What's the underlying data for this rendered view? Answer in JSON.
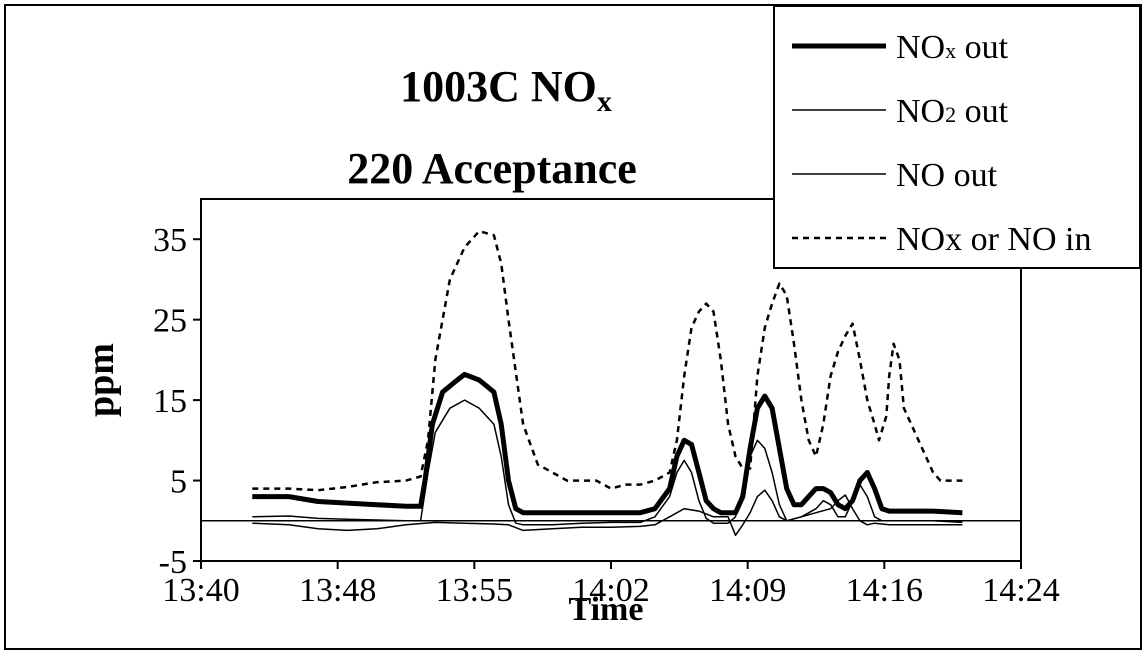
{
  "chart_data": {
    "type": "line",
    "title_main": "1003C NO",
    "title_sub": "x",
    "subtitle": "220 Acceptance",
    "xlabel": "Time",
    "ylabel": "ppm",
    "x_ticks": [
      "13:40",
      "13:48",
      "13:55",
      "14:02",
      "14:09",
      "14:16",
      "14:24"
    ],
    "y_ticks": [
      "35",
      "25",
      "15",
      "5",
      "-5"
    ],
    "ylim": [
      -5,
      40
    ],
    "legend_position": "top-right",
    "x_unit": "minutes after 13:40",
    "series": [
      {
        "name": "NOx or NO in",
        "style": "dashed",
        "color": "#000000",
        "points": [
          [
            3.5,
            4.0
          ],
          [
            6,
            4.0
          ],
          [
            8,
            3.8
          ],
          [
            10,
            4.2
          ],
          [
            12,
            4.8
          ],
          [
            14,
            5.0
          ],
          [
            15,
            5.5
          ],
          [
            15.5,
            10
          ],
          [
            16,
            20
          ],
          [
            17,
            30
          ],
          [
            18,
            34
          ],
          [
            19,
            36
          ],
          [
            20,
            35.5
          ],
          [
            20.5,
            32
          ],
          [
            21,
            25
          ],
          [
            22,
            12
          ],
          [
            23,
            7
          ],
          [
            24,
            6
          ],
          [
            25,
            5
          ],
          [
            27,
            5
          ],
          [
            28,
            4
          ],
          [
            29,
            4.5
          ],
          [
            30,
            4.5
          ],
          [
            31,
            5
          ],
          [
            32,
            6
          ],
          [
            32.5,
            10
          ],
          [
            33,
            18
          ],
          [
            33.5,
            24
          ],
          [
            34,
            26
          ],
          [
            34.5,
            27
          ],
          [
            35,
            26
          ],
          [
            35.5,
            20
          ],
          [
            36,
            12
          ],
          [
            36.5,
            8
          ],
          [
            37,
            6.5
          ],
          [
            37.5,
            6.5
          ],
          [
            38,
            18
          ],
          [
            38.5,
            24
          ],
          [
            39,
            27
          ],
          [
            39.5,
            29.5
          ],
          [
            40,
            28
          ],
          [
            40.5,
            22
          ],
          [
            41,
            15
          ],
          [
            41.5,
            10
          ],
          [
            42,
            8
          ],
          [
            42.5,
            12
          ],
          [
            43,
            18
          ],
          [
            43.5,
            21
          ],
          [
            44,
            23
          ],
          [
            44.5,
            24.5
          ],
          [
            45,
            20
          ],
          [
            45.5,
            15
          ],
          [
            46,
            12
          ],
          [
            46.3,
            10
          ],
          [
            46.8,
            13
          ],
          [
            47,
            18
          ],
          [
            47.3,
            22
          ],
          [
            47.7,
            20
          ],
          [
            48,
            14
          ],
          [
            48.5,
            12
          ],
          [
            49,
            10
          ],
          [
            49.5,
            8
          ],
          [
            50,
            6
          ],
          [
            50.5,
            5
          ],
          [
            51,
            5
          ],
          [
            52,
            5
          ]
        ]
      },
      {
        "name": "NOx out",
        "style": "thick",
        "color": "#000000",
        "points": [
          [
            3.5,
            3.0
          ],
          [
            6,
            3.0
          ],
          [
            8,
            2.4
          ],
          [
            10,
            2.2
          ],
          [
            12,
            2.0
          ],
          [
            14,
            1.8
          ],
          [
            15,
            1.8
          ],
          [
            15.3,
            5
          ],
          [
            15.8,
            12
          ],
          [
            16.5,
            16
          ],
          [
            17.5,
            17.5
          ],
          [
            18,
            18.2
          ],
          [
            19,
            17.5
          ],
          [
            20,
            16
          ],
          [
            20.5,
            12
          ],
          [
            21,
            5
          ],
          [
            21.5,
            1.5
          ],
          [
            22,
            1.0
          ],
          [
            24,
            1.0
          ],
          [
            26,
            1.0
          ],
          [
            28,
            1.0
          ],
          [
            30,
            1.0
          ],
          [
            31,
            1.5
          ],
          [
            32,
            4
          ],
          [
            32.5,
            8
          ],
          [
            33,
            10
          ],
          [
            33.5,
            9.5
          ],
          [
            34,
            6
          ],
          [
            34.5,
            2.5
          ],
          [
            35,
            1.5
          ],
          [
            35.5,
            1.0
          ],
          [
            36,
            1.0
          ],
          [
            36.5,
            1.0
          ],
          [
            37,
            3
          ],
          [
            37.5,
            9
          ],
          [
            38,
            14
          ],
          [
            38.5,
            15.5
          ],
          [
            39,
            14
          ],
          [
            39.5,
            9
          ],
          [
            40,
            4
          ],
          [
            40.5,
            2
          ],
          [
            41,
            2
          ],
          [
            41.5,
            3
          ],
          [
            42,
            4
          ],
          [
            42.5,
            4
          ],
          [
            43,
            3.5
          ],
          [
            43.5,
            2
          ],
          [
            44,
            1.5
          ],
          [
            44.5,
            2.5
          ],
          [
            45,
            5
          ],
          [
            45.5,
            6
          ],
          [
            46,
            4
          ],
          [
            46.5,
            1.5
          ],
          [
            47,
            1.2
          ],
          [
            48,
            1.2
          ],
          [
            50,
            1.2
          ],
          [
            52,
            1.0
          ]
        ]
      },
      {
        "name": "NO out",
        "style": "thin",
        "color": "#000000",
        "points": [
          [
            3.5,
            0.5
          ],
          [
            6,
            0.6
          ],
          [
            8,
            0.3
          ],
          [
            10,
            0.2
          ],
          [
            12,
            0.1
          ],
          [
            14,
            0.0
          ],
          [
            15,
            0.0
          ],
          [
            15.5,
            6
          ],
          [
            16,
            11
          ],
          [
            17,
            14
          ],
          [
            18,
            15
          ],
          [
            19,
            14
          ],
          [
            20,
            12
          ],
          [
            20.5,
            8
          ],
          [
            21,
            2
          ],
          [
            21.5,
            -0.3
          ],
          [
            22,
            -0.5
          ],
          [
            24,
            -0.5
          ],
          [
            26,
            -0.3
          ],
          [
            28,
            -0.2
          ],
          [
            30,
            -0.2
          ],
          [
            31,
            0.5
          ],
          [
            32,
            3
          ],
          [
            32.5,
            6
          ],
          [
            33,
            7.5
          ],
          [
            33.5,
            6
          ],
          [
            34,
            2.5
          ],
          [
            34.5,
            0.3
          ],
          [
            35,
            -0.3
          ],
          [
            36,
            -0.3
          ],
          [
            36.5,
            0.5
          ],
          [
            37,
            4
          ],
          [
            37.5,
            8
          ],
          [
            38,
            10
          ],
          [
            38.5,
            9
          ],
          [
            39,
            6
          ],
          [
            39.5,
            2
          ],
          [
            40,
            0
          ],
          [
            41,
            0.5
          ],
          [
            42,
            1.5
          ],
          [
            42.5,
            2.5
          ],
          [
            43,
            2
          ],
          [
            43.5,
            0.5
          ],
          [
            44,
            0.5
          ],
          [
            44.5,
            2.5
          ],
          [
            45,
            4.5
          ],
          [
            45.5,
            3
          ],
          [
            46,
            0.5
          ],
          [
            46.5,
            0
          ],
          [
            47,
            0
          ],
          [
            48,
            0
          ],
          [
            50,
            0
          ],
          [
            52,
            -0.2
          ]
        ]
      },
      {
        "name": "NO2 out",
        "style": "thin",
        "color": "#000000",
        "points": [
          [
            3.5,
            -0.3
          ],
          [
            6,
            -0.5
          ],
          [
            8,
            -1.0
          ],
          [
            10,
            -1.2
          ],
          [
            12,
            -1.0
          ],
          [
            14,
            -0.5
          ],
          [
            16,
            -0.2
          ],
          [
            18,
            -0.3
          ],
          [
            20,
            -0.4
          ],
          [
            21,
            -0.5
          ],
          [
            22,
            -1.2
          ],
          [
            24,
            -1.0
          ],
          [
            26,
            -0.8
          ],
          [
            28,
            -0.8
          ],
          [
            30,
            -0.7
          ],
          [
            31,
            -0.5
          ],
          [
            32,
            0.5
          ],
          [
            33,
            1.5
          ],
          [
            34,
            1.2
          ],
          [
            35,
            0.5
          ],
          [
            36,
            0.5
          ],
          [
            36.5,
            -1.8
          ],
          [
            37,
            -0.5
          ],
          [
            37.5,
            1
          ],
          [
            38,
            3
          ],
          [
            38.5,
            3.8
          ],
          [
            39,
            2.5
          ],
          [
            39.5,
            0.5
          ],
          [
            40,
            0.0
          ],
          [
            41,
            0.5
          ],
          [
            42,
            1.0
          ],
          [
            43,
            1.5
          ],
          [
            43.5,
            2.5
          ],
          [
            44,
            3.2
          ],
          [
            44.5,
            1.5
          ],
          [
            45,
            0.0
          ],
          [
            45.5,
            -0.5
          ],
          [
            46,
            -0.3
          ],
          [
            47,
            -0.5
          ],
          [
            48,
            -0.5
          ],
          [
            50,
            -0.5
          ],
          [
            52,
            -0.5
          ]
        ]
      }
    ],
    "legend": [
      {
        "label": "NO",
        "sub": "x",
        "tail": " out",
        "style": "thick"
      },
      {
        "label": "NO",
        "sub": "2",
        "tail": "  out",
        "style": "thin"
      },
      {
        "label": "NO out",
        "sub": "",
        "tail": "",
        "style": "thin"
      },
      {
        "label": "NOx or NO in",
        "sub": "",
        "tail": "",
        "style": "dashed"
      }
    ]
  }
}
